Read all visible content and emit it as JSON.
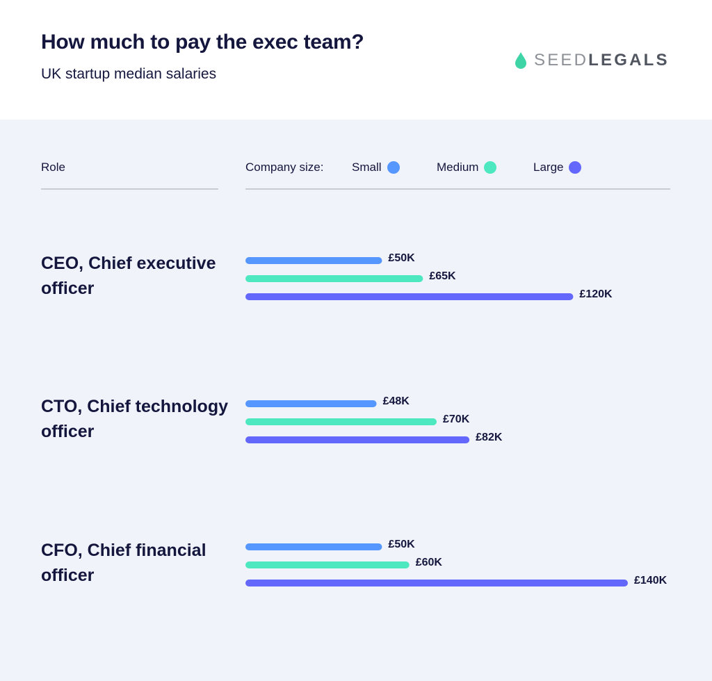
{
  "header": {
    "title": "How much to pay the exec team?",
    "subtitle": "UK startup median salaries",
    "logo": {
      "part1": "SEED",
      "part2": "LEGALS",
      "icon": "water-drop-icon",
      "icon_color": "#3ed4a6"
    }
  },
  "columns": {
    "role_label": "Role",
    "company_size_label": "Company size:"
  },
  "chart_data": {
    "type": "bar",
    "orientation": "horizontal",
    "categories": [
      "CEO, Chief executive officer",
      "CTO, Chief technology officer",
      "CFO, Chief financial officer"
    ],
    "series": [
      {
        "name": "Small",
        "color": "#5596ff",
        "values": [
          50,
          48,
          50
        ],
        "labels": [
          "£50K",
          "£48K",
          "£50K"
        ]
      },
      {
        "name": "Medium",
        "color": "#4de8c0",
        "values": [
          65,
          70,
          60
        ],
        "labels": [
          "£65K",
          "£70K",
          "£60K"
        ]
      },
      {
        "name": "Large",
        "color": "#6467fb",
        "values": [
          120,
          82,
          140
        ],
        "labels": [
          "£120K",
          "£82K",
          "£140K"
        ]
      }
    ],
    "unit": "£K",
    "xlim": [
      0,
      140
    ],
    "grid": false,
    "legend_position": "top"
  }
}
